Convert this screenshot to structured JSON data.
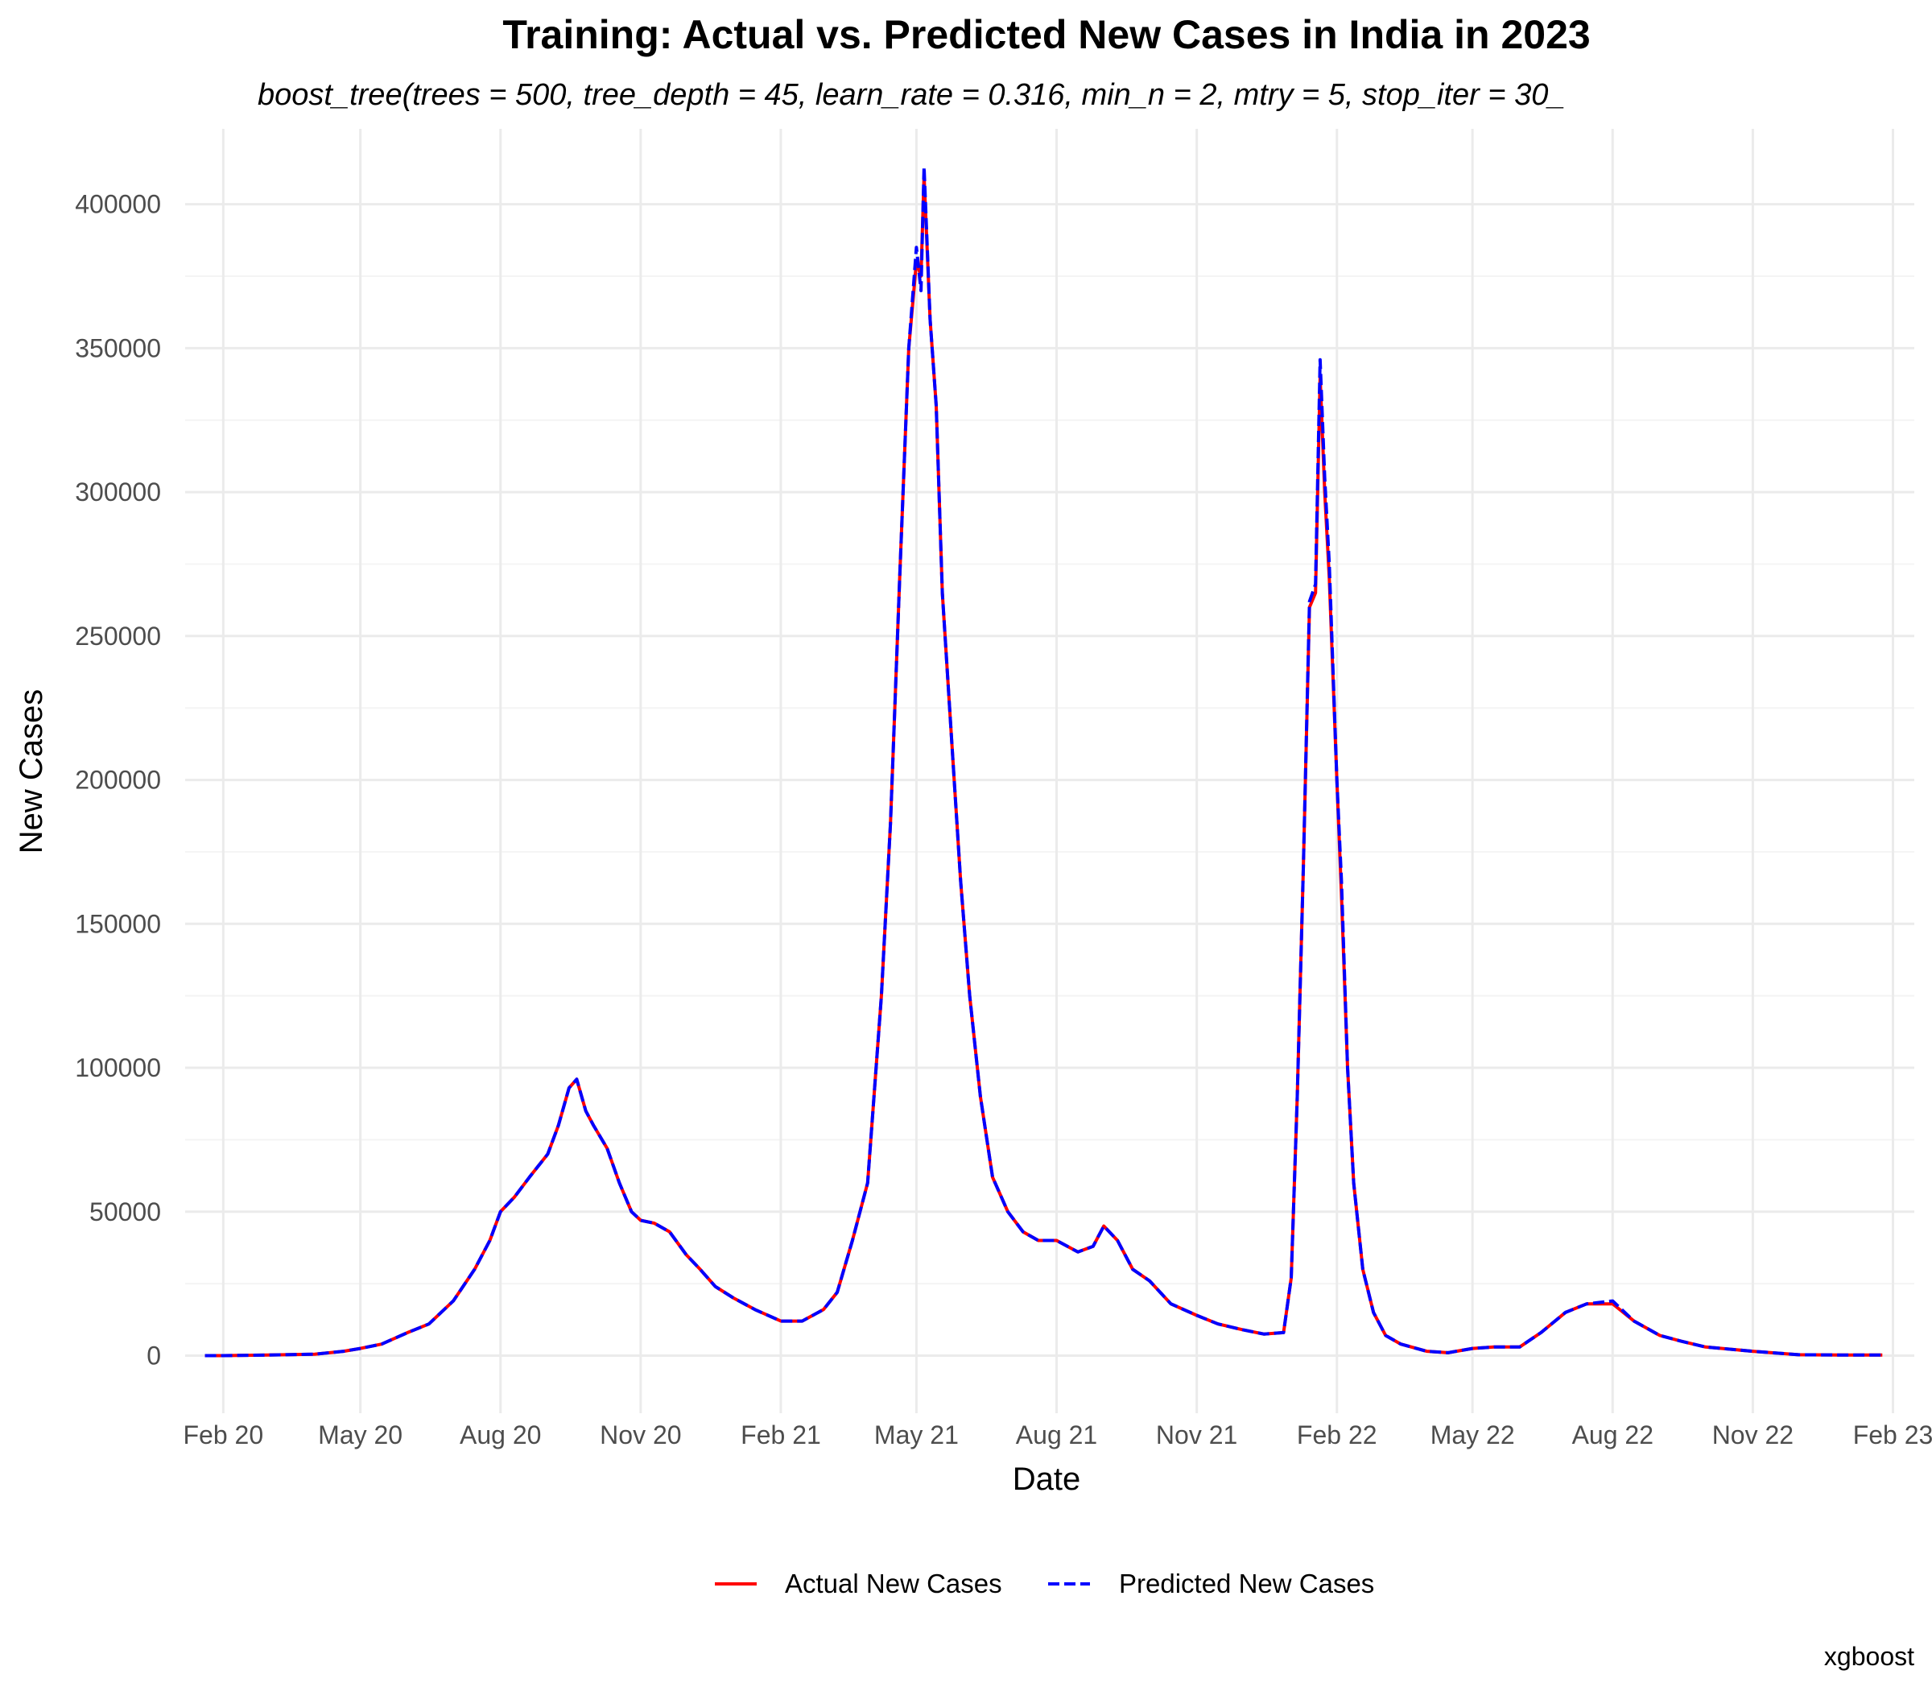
{
  "chart_data": {
    "type": "line",
    "title": "Training: Actual vs. Predicted New Cases in India in 2023",
    "subtitle": "boost_tree(trees = 500, tree_depth = 45, learn_rate = 0.316, min_n = 2, mtry = 5, stop_iter = 30_",
    "xlabel": "Date",
    "ylabel": "New Cases",
    "caption": "xgboost",
    "x_axis_type": "date",
    "xlim": [
      "2020-01-07",
      "2023-02-15"
    ],
    "ylim": [
      -20000,
      415000
    ],
    "x_ticks": [
      {
        "date": "2020-02-01",
        "label": "Feb 20"
      },
      {
        "date": "2020-05-01",
        "label": "May 20"
      },
      {
        "date": "2020-08-01",
        "label": "Aug 20"
      },
      {
        "date": "2020-11-01",
        "label": "Nov 20"
      },
      {
        "date": "2021-02-01",
        "label": "Feb 21"
      },
      {
        "date": "2021-05-01",
        "label": "May 21"
      },
      {
        "date": "2021-08-01",
        "label": "Aug 21"
      },
      {
        "date": "2021-11-01",
        "label": "Nov 21"
      },
      {
        "date": "2022-02-01",
        "label": "Feb 22"
      },
      {
        "date": "2022-05-01",
        "label": "May 22"
      },
      {
        "date": "2022-08-01",
        "label": "Aug 22"
      },
      {
        "date": "2022-11-01",
        "label": "Nov 22"
      },
      {
        "date": "2023-02-01",
        "label": "Feb 23"
      }
    ],
    "y_ticks": [
      0,
      50000,
      100000,
      150000,
      200000,
      250000,
      300000,
      350000,
      400000
    ],
    "grid": true,
    "legend_position": "bottom",
    "colors": {
      "actual": "#ff0000",
      "predicted": "#0000ff"
    },
    "series": [
      {
        "name": "Actual New Cases",
        "style": "solid",
        "color": "#ff0000",
        "points": [
          [
            "2020-01-20",
            0
          ],
          [
            "2020-02-01",
            0
          ],
          [
            "2020-03-01",
            200
          ],
          [
            "2020-04-01",
            500
          ],
          [
            "2020-04-20",
            1500
          ],
          [
            "2020-05-01",
            2500
          ],
          [
            "2020-05-15",
            4000
          ],
          [
            "2020-06-01",
            8000
          ],
          [
            "2020-06-15",
            11000
          ],
          [
            "2020-07-01",
            19000
          ],
          [
            "2020-07-15",
            30000
          ],
          [
            "2020-07-25",
            40000
          ],
          [
            "2020-08-01",
            50000
          ],
          [
            "2020-08-10",
            55000
          ],
          [
            "2020-08-20",
            62000
          ],
          [
            "2020-09-01",
            70000
          ],
          [
            "2020-09-08",
            80000
          ],
          [
            "2020-09-15",
            93000
          ],
          [
            "2020-09-20",
            96000
          ],
          [
            "2020-09-26",
            85000
          ],
          [
            "2020-10-01",
            80000
          ],
          [
            "2020-10-10",
            72000
          ],
          [
            "2020-10-18",
            60000
          ],
          [
            "2020-10-26",
            50000
          ],
          [
            "2020-11-01",
            47000
          ],
          [
            "2020-11-10",
            46000
          ],
          [
            "2020-11-20",
            43000
          ],
          [
            "2020-12-01",
            35000
          ],
          [
            "2020-12-10",
            30000
          ],
          [
            "2020-12-20",
            24000
          ],
          [
            "2021-01-01",
            20000
          ],
          [
            "2021-01-15",
            16000
          ],
          [
            "2021-02-01",
            12000
          ],
          [
            "2021-02-15",
            12000
          ],
          [
            "2021-03-01",
            16000
          ],
          [
            "2021-03-10",
            22000
          ],
          [
            "2021-03-20",
            40000
          ],
          [
            "2021-03-30",
            60000
          ],
          [
            "2021-04-08",
            125000
          ],
          [
            "2021-04-14",
            185000
          ],
          [
            "2021-04-20",
            270000
          ],
          [
            "2021-04-26",
            350000
          ],
          [
            "2021-05-01",
            380000
          ],
          [
            "2021-05-04",
            375000
          ],
          [
            "2021-05-06",
            410000
          ],
          [
            "2021-05-10",
            360000
          ],
          [
            "2021-05-14",
            330000
          ],
          [
            "2021-05-18",
            265000
          ],
          [
            "2021-05-24",
            215000
          ],
          [
            "2021-05-30",
            165000
          ],
          [
            "2021-06-05",
            125000
          ],
          [
            "2021-06-12",
            90000
          ],
          [
            "2021-06-20",
            62000
          ],
          [
            "2021-06-30",
            50000
          ],
          [
            "2021-07-10",
            43000
          ],
          [
            "2021-07-20",
            40000
          ],
          [
            "2021-08-01",
            40000
          ],
          [
            "2021-08-15",
            36000
          ],
          [
            "2021-08-25",
            38000
          ],
          [
            "2021-09-01",
            45000
          ],
          [
            "2021-09-10",
            40000
          ],
          [
            "2021-09-20",
            30000
          ],
          [
            "2021-10-01",
            26000
          ],
          [
            "2021-10-15",
            18000
          ],
          [
            "2021-11-01",
            14000
          ],
          [
            "2021-11-15",
            11000
          ],
          [
            "2021-12-01",
            9000
          ],
          [
            "2021-12-15",
            7500
          ],
          [
            "2021-12-28",
            8000
          ],
          [
            "2022-01-02",
            27000
          ],
          [
            "2022-01-06",
            90000
          ],
          [
            "2022-01-10",
            170000
          ],
          [
            "2022-01-14",
            260000
          ],
          [
            "2022-01-18",
            265000
          ],
          [
            "2022-01-21",
            340000
          ],
          [
            "2022-01-24",
            300000
          ],
          [
            "2022-01-27",
            270000
          ],
          [
            "2022-02-01",
            200000
          ],
          [
            "2022-02-04",
            160000
          ],
          [
            "2022-02-08",
            100000
          ],
          [
            "2022-02-12",
            60000
          ],
          [
            "2022-02-18",
            30000
          ],
          [
            "2022-02-25",
            15000
          ],
          [
            "2022-03-05",
            7000
          ],
          [
            "2022-03-15",
            4000
          ],
          [
            "2022-04-01",
            1500
          ],
          [
            "2022-04-15",
            1000
          ],
          [
            "2022-05-01",
            2500
          ],
          [
            "2022-05-15",
            3000
          ],
          [
            "2022-06-01",
            3000
          ],
          [
            "2022-06-15",
            8000
          ],
          [
            "2022-07-01",
            15000
          ],
          [
            "2022-07-15",
            18000
          ],
          [
            "2022-08-01",
            18000
          ],
          [
            "2022-08-15",
            12000
          ],
          [
            "2022-09-01",
            7000
          ],
          [
            "2022-09-15",
            5000
          ],
          [
            "2022-10-01",
            3000
          ],
          [
            "2022-11-01",
            1500
          ],
          [
            "2022-12-01",
            300
          ],
          [
            "2023-01-01",
            200
          ],
          [
            "2023-01-25",
            200
          ]
        ]
      },
      {
        "name": "Predicted New Cases",
        "style": "dashed",
        "color": "#0000ff",
        "points": [
          [
            "2020-01-20",
            0
          ],
          [
            "2020-02-01",
            0
          ],
          [
            "2020-03-01",
            200
          ],
          [
            "2020-04-01",
            500
          ],
          [
            "2020-04-20",
            1500
          ],
          [
            "2020-05-01",
            2500
          ],
          [
            "2020-05-15",
            4000
          ],
          [
            "2020-06-01",
            8000
          ],
          [
            "2020-06-15",
            11000
          ],
          [
            "2020-07-01",
            19000
          ],
          [
            "2020-07-15",
            30000
          ],
          [
            "2020-07-25",
            40000
          ],
          [
            "2020-08-01",
            50000
          ],
          [
            "2020-08-10",
            55000
          ],
          [
            "2020-08-20",
            62000
          ],
          [
            "2020-09-01",
            70000
          ],
          [
            "2020-09-08",
            80000
          ],
          [
            "2020-09-15",
            93000
          ],
          [
            "2020-09-20",
            96000
          ],
          [
            "2020-09-26",
            85000
          ],
          [
            "2020-10-01",
            80000
          ],
          [
            "2020-10-10",
            72000
          ],
          [
            "2020-10-18",
            60000
          ],
          [
            "2020-10-26",
            50000
          ],
          [
            "2020-11-01",
            47000
          ],
          [
            "2020-11-10",
            46000
          ],
          [
            "2020-11-20",
            43000
          ],
          [
            "2020-12-01",
            35000
          ],
          [
            "2020-12-10",
            30000
          ],
          [
            "2020-12-20",
            24000
          ],
          [
            "2021-01-01",
            20000
          ],
          [
            "2021-01-15",
            16000
          ],
          [
            "2021-02-01",
            12000
          ],
          [
            "2021-02-15",
            12000
          ],
          [
            "2021-03-01",
            16000
          ],
          [
            "2021-03-10",
            22000
          ],
          [
            "2021-03-20",
            40000
          ],
          [
            "2021-03-30",
            60000
          ],
          [
            "2021-04-08",
            125000
          ],
          [
            "2021-04-14",
            185000
          ],
          [
            "2021-04-20",
            270000
          ],
          [
            "2021-04-26",
            350000
          ],
          [
            "2021-05-01",
            385000
          ],
          [
            "2021-05-04",
            370000
          ],
          [
            "2021-05-06",
            413000
          ],
          [
            "2021-05-10",
            360000
          ],
          [
            "2021-05-14",
            330000
          ],
          [
            "2021-05-18",
            265000
          ],
          [
            "2021-05-24",
            215000
          ],
          [
            "2021-05-30",
            165000
          ],
          [
            "2021-06-05",
            125000
          ],
          [
            "2021-06-12",
            90000
          ],
          [
            "2021-06-20",
            62000
          ],
          [
            "2021-06-30",
            50000
          ],
          [
            "2021-07-10",
            43000
          ],
          [
            "2021-07-20",
            40000
          ],
          [
            "2021-08-01",
            40000
          ],
          [
            "2021-08-15",
            36000
          ],
          [
            "2021-08-25",
            38000
          ],
          [
            "2021-09-01",
            45000
          ],
          [
            "2021-09-10",
            40000
          ],
          [
            "2021-09-20",
            30000
          ],
          [
            "2021-10-01",
            26000
          ],
          [
            "2021-10-15",
            18000
          ],
          [
            "2021-11-01",
            14000
          ],
          [
            "2021-11-15",
            11000
          ],
          [
            "2021-12-01",
            9000
          ],
          [
            "2021-12-15",
            7500
          ],
          [
            "2021-12-28",
            8000
          ],
          [
            "2022-01-02",
            27000
          ],
          [
            "2022-01-06",
            90000
          ],
          [
            "2022-01-10",
            170000
          ],
          [
            "2022-01-14",
            262000
          ],
          [
            "2022-01-18",
            268000
          ],
          [
            "2022-01-21",
            346000
          ],
          [
            "2022-01-24",
            305000
          ],
          [
            "2022-01-27",
            275000
          ],
          [
            "2022-02-01",
            200000
          ],
          [
            "2022-02-04",
            165000
          ],
          [
            "2022-02-08",
            100000
          ],
          [
            "2022-02-12",
            60000
          ],
          [
            "2022-02-18",
            30000
          ],
          [
            "2022-02-25",
            15000
          ],
          [
            "2022-03-05",
            7000
          ],
          [
            "2022-03-15",
            4000
          ],
          [
            "2022-04-01",
            1500
          ],
          [
            "2022-04-15",
            1000
          ],
          [
            "2022-05-01",
            2500
          ],
          [
            "2022-05-15",
            3000
          ],
          [
            "2022-06-01",
            3000
          ],
          [
            "2022-06-15",
            8000
          ],
          [
            "2022-07-01",
            15000
          ],
          [
            "2022-07-15",
            18000
          ],
          [
            "2022-08-01",
            19000
          ],
          [
            "2022-08-15",
            12000
          ],
          [
            "2022-09-01",
            7000
          ],
          [
            "2022-09-15",
            5000
          ],
          [
            "2022-10-01",
            3000
          ],
          [
            "2022-11-01",
            1500
          ],
          [
            "2022-12-01",
            300
          ],
          [
            "2023-01-01",
            200
          ],
          [
            "2023-01-25",
            200
          ]
        ]
      }
    ]
  }
}
